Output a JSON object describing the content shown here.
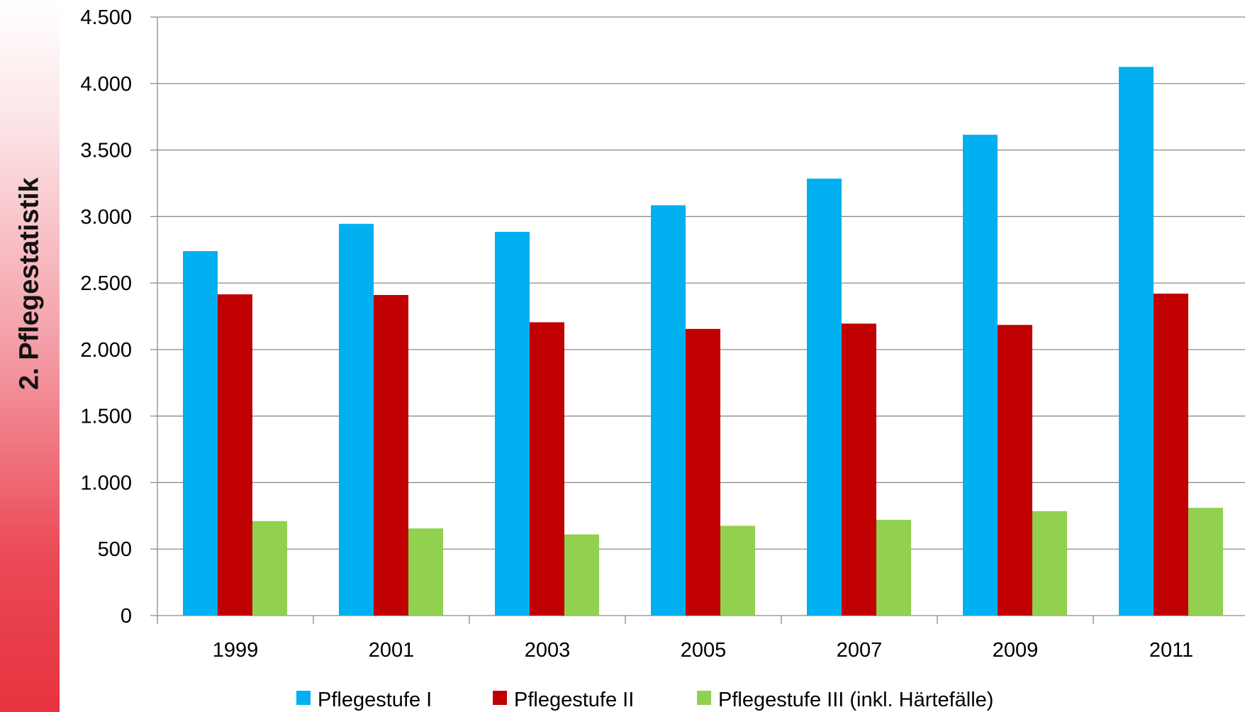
{
  "sidebar": {
    "title": "2. Pflegestatistik"
  },
  "chart_data": {
    "type": "bar",
    "categories": [
      "1999",
      "2001",
      "2003",
      "2005",
      "2007",
      "2009",
      "2011"
    ],
    "series": [
      {
        "name": "Pflegestufe I",
        "color": "#00b0f0",
        "values": [
          2740,
          2945,
          2885,
          3085,
          3285,
          3615,
          4125
        ]
      },
      {
        "name": "Pflegestufe II",
        "color": "#c00000",
        "values": [
          2415,
          2410,
          2205,
          2155,
          2195,
          2185,
          2420
        ]
      },
      {
        "name": "Pflegestufe III (inkl. Härtefälle)",
        "color": "#92d050",
        "values": [
          710,
          655,
          610,
          675,
          720,
          785,
          810
        ]
      }
    ],
    "ylim": [
      0,
      4500
    ],
    "yticks": [
      0,
      500,
      1000,
      1500,
      2000,
      2500,
      3000,
      3500,
      4000,
      4500
    ],
    "ytick_labels": [
      "0",
      "500",
      "1.000",
      "1.500",
      "2.000",
      "2.500",
      "3.000",
      "3.500",
      "4.000",
      "4.500"
    ],
    "grid": true,
    "legend": "bottom",
    "title": "",
    "xlabel": "",
    "ylabel": ""
  }
}
